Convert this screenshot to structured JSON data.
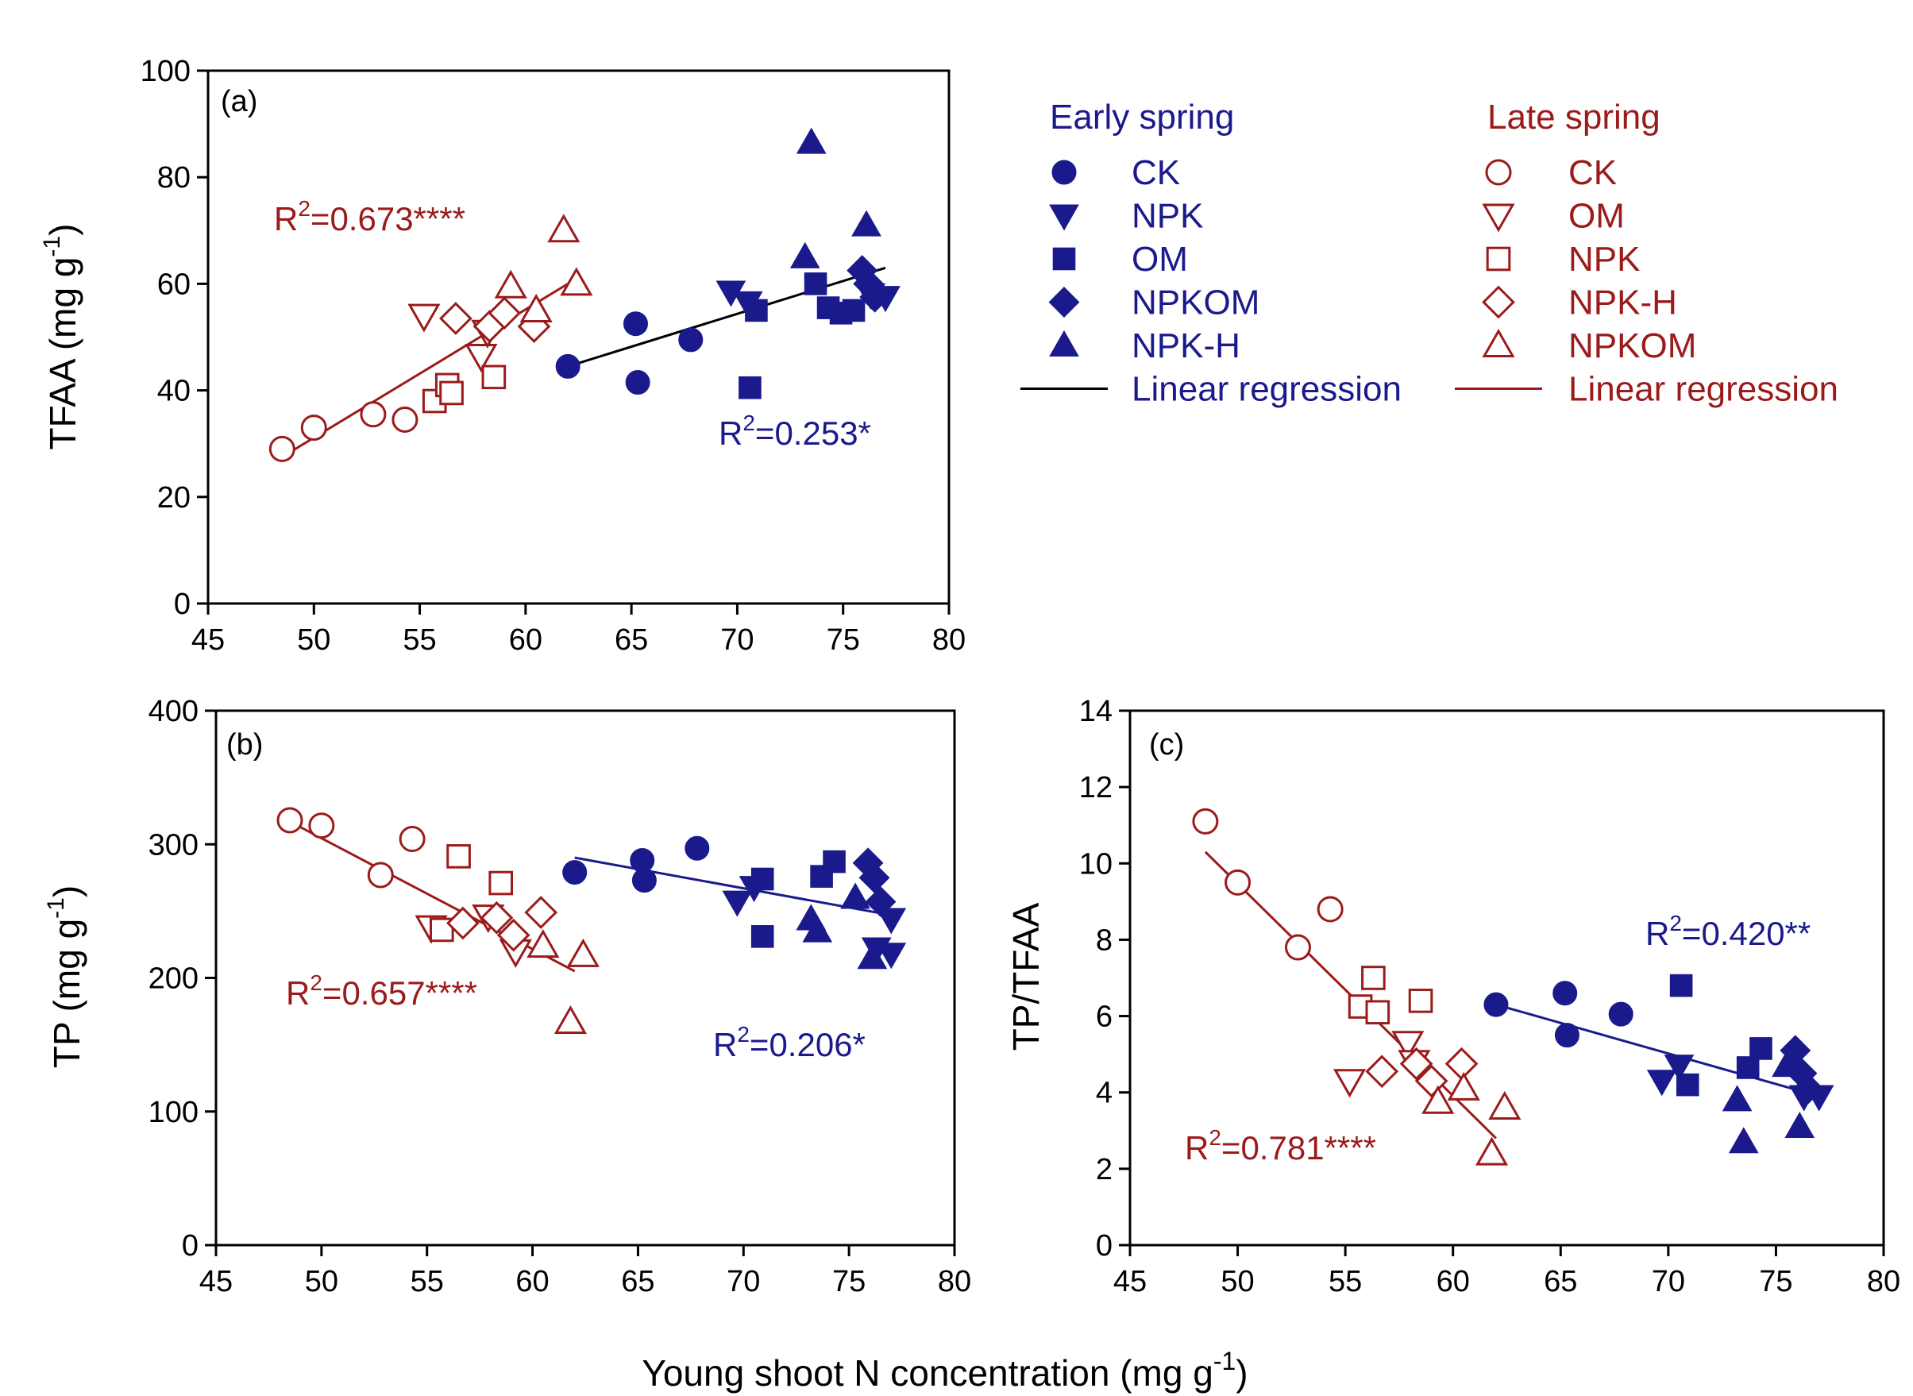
{
  "chart_data": {
    "type": "scatter",
    "xlabel_main": "Young shoot N concentration (mg g",
    "xlabel_main_sup": "-1",
    "xlabel_main_end": ")",
    "colors": {
      "early": "#1a1a8c",
      "late": "#9b1b1b",
      "early_line": "#000000",
      "late_line": "#9b1b1b"
    },
    "legend": {
      "early_title": "Early spring",
      "late_title": "Late spring",
      "early_items": [
        {
          "label": "CK",
          "marker": "circle"
        },
        {
          "label": "NPK",
          "marker": "triangle-down"
        },
        {
          "label": "OM",
          "marker": "square"
        },
        {
          "label": "NPKOM",
          "marker": "diamond"
        },
        {
          "label": "NPK-H",
          "marker": "triangle-up"
        },
        {
          "label": "Linear regression",
          "marker": "line"
        }
      ],
      "late_items": [
        {
          "label": "CK",
          "marker": "circle"
        },
        {
          "label": "OM",
          "marker": "triangle-down"
        },
        {
          "label": "NPK",
          "marker": "square"
        },
        {
          "label": "NPK-H",
          "marker": "diamond"
        },
        {
          "label": "NPKOM",
          "marker": "triangle-up"
        },
        {
          "label": "Linear regression",
          "marker": "line"
        }
      ]
    },
    "panels": [
      {
        "id": "a",
        "label": "(a)",
        "ylabel": "TFAA (mg g",
        "ylabel_sup": "-1",
        "ylabel_end": ")",
        "xlim": [
          45,
          80
        ],
        "ylim": [
          0,
          100
        ],
        "xticks": [
          45,
          50,
          55,
          60,
          65,
          70,
          75,
          80
        ],
        "yticks": [
          0,
          20,
          40,
          60,
          80,
          100
        ],
        "r2_early": {
          "prefix": "R",
          "sup": "2",
          "text": "=0.253*"
        },
        "r2_late": {
          "prefix": "R",
          "sup": "2",
          "text": "=0.673****"
        },
        "fit_early": {
          "x": [
            62,
            77
          ],
          "y": [
            44.5,
            63
          ]
        },
        "fit_late": {
          "x": [
            48.5,
            62
          ],
          "y": [
            27.5,
            60
          ]
        },
        "series": [
          {
            "group": "late",
            "marker": "circle",
            "name": "CK",
            "points": [
              [
                48.5,
                29
              ],
              [
                50,
                33
              ],
              [
                52.8,
                35.5
              ],
              [
                54.3,
                34.5
              ]
            ]
          },
          {
            "group": "late",
            "marker": "triangle-down",
            "name": "OM",
            "points": [
              [
                55.2,
                54
              ],
              [
                57.9,
                46.5
              ],
              [
                58.2,
                51
              ]
            ]
          },
          {
            "group": "late",
            "marker": "square",
            "name": "NPK",
            "points": [
              [
                55.7,
                38
              ],
              [
                56.3,
                41
              ],
              [
                56.5,
                39.5
              ],
              [
                58.5,
                42.5
              ]
            ]
          },
          {
            "group": "late",
            "marker": "diamond",
            "name": "NPK-H",
            "points": [
              [
                56.7,
                53.5
              ],
              [
                58.3,
                52
              ],
              [
                59,
                54.5
              ],
              [
                60.4,
                52
              ]
            ]
          },
          {
            "group": "late",
            "marker": "triangle-up",
            "name": "NPKOM",
            "points": [
              [
                59.3,
                59.5
              ],
              [
                60.5,
                55
              ],
              [
                61.8,
                70
              ],
              [
                62.4,
                60
              ]
            ]
          },
          {
            "group": "early",
            "marker": "circle",
            "name": "CK",
            "points": [
              [
                62,
                44.5
              ],
              [
                65.2,
                52.5
              ],
              [
                65.3,
                41.5
              ],
              [
                67.8,
                49.5
              ]
            ]
          },
          {
            "group": "early",
            "marker": "triangle-down",
            "name": "NPK",
            "points": [
              [
                69.7,
                58.5
              ],
              [
                70.5,
                56.5
              ],
              [
                76.3,
                58
              ],
              [
                77,
                57.5
              ]
            ]
          },
          {
            "group": "early",
            "marker": "square",
            "name": "OM",
            "points": [
              [
                70.6,
                40.5
              ],
              [
                70.9,
                55
              ],
              [
                73.7,
                60
              ],
              [
                74.3,
                55.5
              ],
              [
                74.9,
                54.5
              ],
              [
                75.5,
                55
              ]
            ]
          },
          {
            "group": "early",
            "marker": "diamond",
            "name": "NPKOM",
            "points": [
              [
                75.9,
                62.5
              ],
              [
                76.2,
                60
              ],
              [
                76.5,
                57.5
              ]
            ]
          },
          {
            "group": "early",
            "marker": "triangle-up",
            "name": "NPK-H",
            "points": [
              [
                73.2,
                65
              ],
              [
                73.5,
                86.5
              ],
              [
                76.1,
                71
              ]
            ]
          }
        ]
      },
      {
        "id": "b",
        "label": "(b)",
        "ylabel": "TP (mg g",
        "ylabel_sup": "-1",
        "ylabel_end": ")",
        "xlim": [
          45,
          80
        ],
        "ylim": [
          0,
          400
        ],
        "xticks": [
          45,
          50,
          55,
          60,
          65,
          70,
          75,
          80
        ],
        "yticks": [
          0,
          100,
          200,
          300,
          400
        ],
        "r2_early": {
          "prefix": "R",
          "sup": "2",
          "text": "=0.206*"
        },
        "r2_late": {
          "prefix": "R",
          "sup": "2",
          "text": "=0.657****"
        },
        "fit_early": {
          "x": [
            62,
            77
          ],
          "y": [
            290,
            247
          ]
        },
        "fit_late": {
          "x": [
            48.5,
            62
          ],
          "y": [
            317,
            205
          ]
        },
        "series": [
          {
            "group": "late",
            "marker": "circle",
            "name": "CK",
            "points": [
              [
                48.5,
                318
              ],
              [
                50,
                314
              ],
              [
                52.8,
                277
              ],
              [
                54.3,
                304
              ]
            ]
          },
          {
            "group": "late",
            "marker": "triangle-down",
            "name": "OM",
            "points": [
              [
                55.2,
                238
              ],
              [
                57.9,
                246
              ],
              [
                59.2,
                220
              ]
            ]
          },
          {
            "group": "late",
            "marker": "square",
            "name": "NPK",
            "points": [
              [
                55.7,
                236
              ],
              [
                56.5,
                291
              ],
              [
                58.5,
                271
              ]
            ]
          },
          {
            "group": "late",
            "marker": "diamond",
            "name": "NPK-H",
            "points": [
              [
                56.7,
                241
              ],
              [
                58.3,
                245
              ],
              [
                59.1,
                232
              ],
              [
                60.4,
                249
              ]
            ]
          },
          {
            "group": "late",
            "marker": "triangle-up",
            "name": "NPKOM",
            "points": [
              [
                60.5,
                224
              ],
              [
                61.8,
                167
              ],
              [
                62.4,
                217
              ]
            ]
          },
          {
            "group": "early",
            "marker": "circle",
            "name": "CK",
            "points": [
              [
                62,
                279
              ],
              [
                65.2,
                288
              ],
              [
                65.3,
                273
              ],
              [
                67.8,
                297
              ]
            ]
          },
          {
            "group": "early",
            "marker": "triangle-down",
            "name": "NPK",
            "points": [
              [
                69.7,
                257
              ],
              [
                70.5,
                268
              ],
              [
                76.3,
                222
              ],
              [
                77,
                244
              ],
              [
                77,
                218
              ]
            ]
          },
          {
            "group": "early",
            "marker": "square",
            "name": "OM",
            "points": [
              [
                70.9,
                274
              ],
              [
                70.9,
                231
              ],
              [
                73.7,
                276
              ],
              [
                74.3,
                287
              ]
            ]
          },
          {
            "group": "early",
            "marker": "diamond",
            "name": "NPKOM",
            "points": [
              [
                75.9,
                286
              ],
              [
                76.2,
                275
              ],
              [
                76.5,
                257
              ]
            ]
          },
          {
            "group": "early",
            "marker": "triangle-up",
            "name": "NPK-H",
            "points": [
              [
                73.2,
                244
              ],
              [
                73.5,
                235
              ],
              [
                75.3,
                260
              ],
              [
                76.1,
                215
              ]
            ]
          }
        ]
      },
      {
        "id": "c",
        "label": "(c)",
        "ylabel": "TP/TFAA",
        "ylabel_sup": "",
        "ylabel_end": "",
        "xlim": [
          45,
          80
        ],
        "ylim": [
          0,
          14
        ],
        "xticks": [
          45,
          50,
          55,
          60,
          65,
          70,
          75,
          80
        ],
        "yticks": [
          0,
          2,
          4,
          6,
          8,
          10,
          12,
          14
        ],
        "r2_early": {
          "prefix": "R",
          "sup": "2",
          "text": "=0.420**"
        },
        "r2_late": {
          "prefix": "R",
          "sup": "2",
          "text": "=0.781****"
        },
        "fit_early": {
          "x": [
            62,
            77
          ],
          "y": [
            6.3,
            3.9
          ]
        },
        "fit_late": {
          "x": [
            48.5,
            62
          ],
          "y": [
            10.3,
            2.8
          ]
        },
        "series": [
          {
            "group": "late",
            "marker": "circle",
            "name": "CK",
            "points": [
              [
                48.5,
                11.1
              ],
              [
                50,
                9.5
              ],
              [
                52.8,
                7.8
              ],
              [
                54.3,
                8.8
              ]
            ]
          },
          {
            "group": "late",
            "marker": "triangle-down",
            "name": "OM",
            "points": [
              [
                55.2,
                4.3
              ],
              [
                57.9,
                5.3
              ],
              [
                58.2,
                4.8
              ]
            ]
          },
          {
            "group": "late",
            "marker": "square",
            "name": "NPK",
            "points": [
              [
                55.7,
                6.25
              ],
              [
                56.3,
                7.0
              ],
              [
                56.5,
                6.1
              ],
              [
                58.5,
                6.4
              ]
            ]
          },
          {
            "group": "late",
            "marker": "diamond",
            "name": "NPK-H",
            "points": [
              [
                56.7,
                4.55
              ],
              [
                58.3,
                4.75
              ],
              [
                59,
                4.3
              ],
              [
                60.4,
                4.75
              ]
            ]
          },
          {
            "group": "late",
            "marker": "triangle-up",
            "name": "NPKOM",
            "points": [
              [
                59.3,
                3.75
              ],
              [
                60.5,
                4.1
              ],
              [
                61.8,
                2.4
              ],
              [
                62.4,
                3.6
              ]
            ]
          },
          {
            "group": "early",
            "marker": "circle",
            "name": "CK",
            "points": [
              [
                62,
                6.3
              ],
              [
                65.2,
                6.6
              ],
              [
                65.3,
                5.5
              ],
              [
                67.8,
                6.05
              ]
            ]
          },
          {
            "group": "early",
            "marker": "triangle-down",
            "name": "NPK",
            "points": [
              [
                69.7,
                4.3
              ],
              [
                70.5,
                4.7
              ],
              [
                76.3,
                3.9
              ],
              [
                77,
                3.9
              ]
            ]
          },
          {
            "group": "early",
            "marker": "square",
            "name": "OM",
            "points": [
              [
                70.6,
                6.8
              ],
              [
                70.9,
                4.2
              ],
              [
                73.7,
                4.65
              ],
              [
                74.3,
                5.15
              ]
            ]
          },
          {
            "group": "early",
            "marker": "diamond",
            "name": "NPKOM",
            "points": [
              [
                75.9,
                5.1
              ],
              [
                76.2,
                4.5
              ],
              [
                76.5,
                4.1
              ]
            ]
          },
          {
            "group": "early",
            "marker": "triangle-up",
            "name": "NPK-H",
            "points": [
              [
                73.2,
                3.8
              ],
              [
                73.5,
                2.7
              ],
              [
                75.5,
                4.7
              ],
              [
                76.1,
                3.1
              ]
            ]
          }
        ]
      }
    ]
  }
}
